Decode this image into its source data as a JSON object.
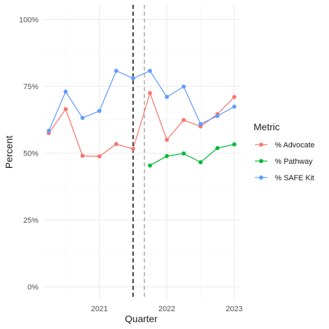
{
  "chart_data": {
    "type": "line",
    "xlabel": "Quarter",
    "ylabel": "Percent",
    "x_ticks": [
      "2021",
      "2022",
      "2023"
    ],
    "y_ticks": [
      "0%",
      "25%",
      "50%",
      "75%",
      "100%"
    ],
    "xlim": [
      "2020-03",
      "2023-02"
    ],
    "ylim": [
      0,
      100
    ],
    "grid": true,
    "legend_title": "Metric",
    "legend_position": "right",
    "vlines": [
      {
        "x": "2021-07",
        "color": "#000000",
        "style": "dashed"
      },
      {
        "x": "2021-09",
        "color": "#a6a6a6",
        "style": "dashed"
      }
    ],
    "series": [
      {
        "name": "% Advocate",
        "color": "#F8766D",
        "points": [
          {
            "x": "2020-04",
            "y": 57.5
          },
          {
            "x": "2020-07",
            "y": 66.5
          },
          {
            "x": "2020-10",
            "y": 49
          },
          {
            "x": "2021-01",
            "y": 48.8
          },
          {
            "x": "2021-04",
            "y": 53.4
          },
          {
            "x": "2021-07",
            "y": 51.6
          },
          {
            "x": "2021-10",
            "y": 72.5
          },
          {
            "x": "2022-01",
            "y": 55
          },
          {
            "x": "2022-04",
            "y": 62.4
          },
          {
            "x": "2022-07",
            "y": 60
          },
          {
            "x": "2022-10",
            "y": 64.6
          },
          {
            "x": "2023-01",
            "y": 71
          }
        ]
      },
      {
        "name": "% Pathway",
        "color": "#00BA38",
        "points": [
          {
            "x": "2021-10",
            "y": 45.4
          },
          {
            "x": "2022-01",
            "y": 48.9
          },
          {
            "x": "2022-04",
            "y": 49.9
          },
          {
            "x": "2022-07",
            "y": 46.6
          },
          {
            "x": "2022-10",
            "y": 51.9
          },
          {
            "x": "2023-01",
            "y": 53.3
          }
        ]
      },
      {
        "name": "% SAFE Kit",
        "color": "#619CFF",
        "points": [
          {
            "x": "2020-04",
            "y": 58.4
          },
          {
            "x": "2020-07",
            "y": 73
          },
          {
            "x": "2020-10",
            "y": 63.2
          },
          {
            "x": "2021-01",
            "y": 65.8
          },
          {
            "x": "2021-04",
            "y": 80.8
          },
          {
            "x": "2021-07",
            "y": 78
          },
          {
            "x": "2021-10",
            "y": 80.8
          },
          {
            "x": "2022-01",
            "y": 71
          },
          {
            "x": "2022-04",
            "y": 74.9
          },
          {
            "x": "2022-07",
            "y": 60.9
          },
          {
            "x": "2022-10",
            "y": 63.9
          },
          {
            "x": "2023-01",
            "y": 67.4
          }
        ]
      }
    ]
  }
}
